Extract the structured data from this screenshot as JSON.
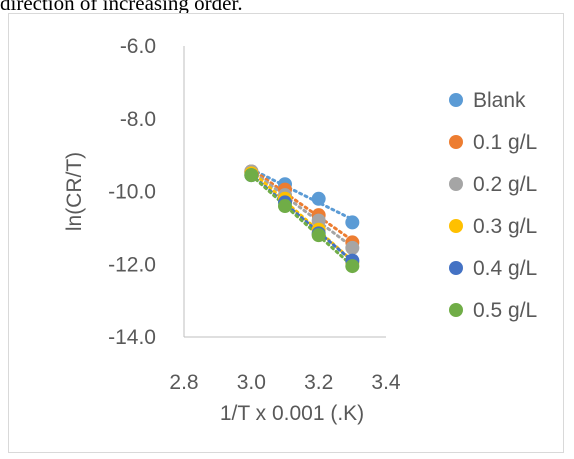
{
  "caption_fragment": "direction of increasing order.",
  "chart_data": {
    "type": "scatter",
    "title": "",
    "xlabel": "1/T x 0.001 (.K)",
    "ylabel": "ln(CR/T)",
    "xlim": [
      2.8,
      3.4
    ],
    "ylim": [
      -14.0,
      -6.0
    ],
    "x_ticks": [
      "2.8",
      "3.0",
      "3.2",
      "3.4"
    ],
    "y_ticks": [
      "-6.0",
      "-8.0",
      "-10.0",
      "-12.0",
      "-14.0"
    ],
    "trendline": "linear, dotted",
    "legend_position": "right",
    "x": [
      3.0,
      3.1,
      3.2,
      3.3
    ],
    "series": [
      {
        "name": "Blank",
        "color": "#5b9bd5",
        "y": [
          -9.45,
          -9.8,
          -10.2,
          -10.85
        ]
      },
      {
        "name": "0.1 g/L",
        "color": "#ed7d31",
        "y": [
          -9.45,
          -9.95,
          -10.65,
          -11.4
        ]
      },
      {
        "name": "0.2 g/L",
        "color": "#a5a5a5",
        "y": [
          -9.45,
          -10.1,
          -10.8,
          -11.55
        ]
      },
      {
        "name": "0.3 g/L",
        "color": "#ffc000",
        "y": [
          -9.5,
          -10.2,
          -11.05,
          -11.95
        ]
      },
      {
        "name": "0.4 g/L",
        "color": "#4472c4",
        "y": [
          -9.55,
          -10.3,
          -11.15,
          -11.9
        ]
      },
      {
        "name": "0.5 g/L",
        "color": "#70ad47",
        "y": [
          -9.55,
          -10.4,
          -11.2,
          -12.05
        ]
      }
    ]
  }
}
